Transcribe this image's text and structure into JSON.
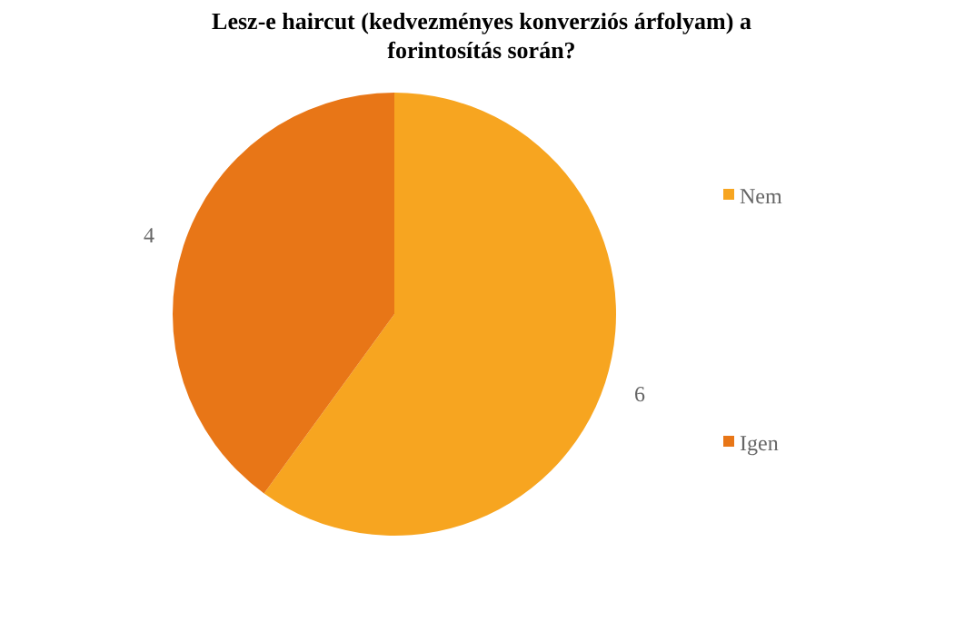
{
  "chart_data": {
    "type": "pie",
    "title": "Lesz-e haircut (kedvezményes konverziós árfolyam) a forintosítás során?",
    "categories": [
      "Nem",
      "Igen"
    ],
    "values": [
      6,
      4
    ],
    "colors": [
      "#f7a520",
      "#e87617"
    ],
    "data_labels": true,
    "legend": "right"
  }
}
